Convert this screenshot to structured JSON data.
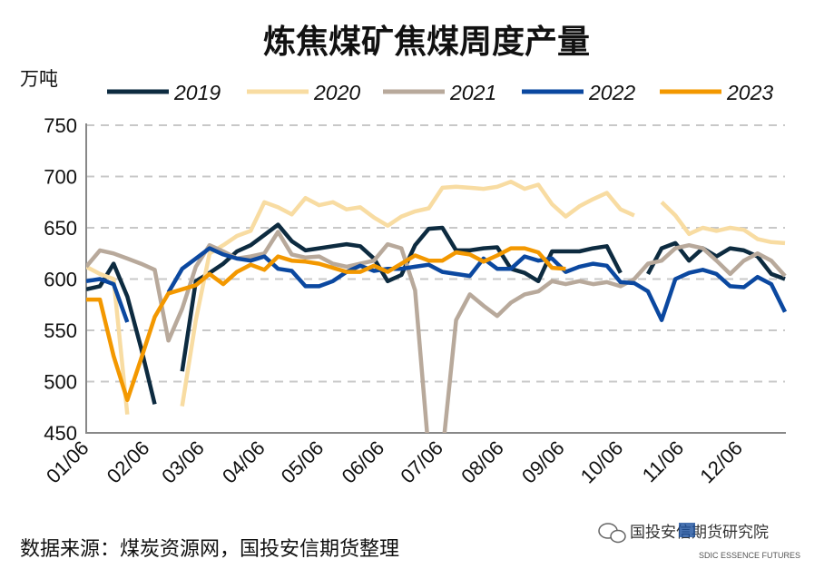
{
  "chart_data": {
    "type": "line",
    "title": "炼焦煤矿焦煤周度产量",
    "ylabel": "万吨",
    "xlabel": "",
    "ylim": [
      450,
      750
    ],
    "yticks": [
      "750",
      "700",
      "650",
      "600",
      "550",
      "500",
      "450"
    ],
    "xtick_labels": [
      "01/06",
      "02/06",
      "03/06",
      "04/06",
      "05/06",
      "06/06",
      "07/06",
      "08/06",
      "09/06",
      "10/06",
      "11/06",
      "12/06"
    ],
    "grid": "horizontal dashed",
    "legend": "top",
    "x": [
      "01/06",
      "01/13",
      "01/20",
      "01/27",
      "02/03",
      "02/10",
      "02/17",
      "02/24",
      "03/03",
      "03/10",
      "03/17",
      "03/24",
      "03/31",
      "04/07",
      "04/14",
      "04/21",
      "04/28",
      "05/05",
      "05/12",
      "05/19",
      "05/26",
      "06/02",
      "06/09",
      "06/16",
      "06/23",
      "06/30",
      "07/07",
      "07/14",
      "07/21",
      "07/28",
      "08/04",
      "08/11",
      "08/18",
      "08/25",
      "09/01",
      "09/08",
      "09/15",
      "09/22",
      "09/29",
      "10/06",
      "10/13",
      "10/20",
      "10/27",
      "11/03",
      "11/10",
      "11/17",
      "11/24",
      "12/01",
      "12/08",
      "12/15",
      "12/22",
      "12/29"
    ],
    "series": [
      {
        "name": "2019",
        "color": "#0d2b40",
        "values": [
          590,
          593,
          615,
          583,
          533,
          478,
          null,
          510,
          598,
          606,
          615,
          627,
          633,
          643,
          653,
          637,
          628,
          630,
          632,
          634,
          632,
          620,
          598,
          604,
          633,
          649,
          650,
          628,
          628,
          630,
          631,
          610,
          606,
          598,
          627,
          627,
          627,
          630,
          632,
          606,
          null,
          605,
          630,
          635,
          618,
          630,
          622,
          630,
          628,
          622,
          605,
          600
        ]
      },
      {
        "name": "2020",
        "color": "#f8dca2",
        "values": [
          612,
          605,
          600,
          468,
          null,
          null,
          null,
          476,
          560,
          625,
          633,
          642,
          647,
          675,
          670,
          663,
          679,
          672,
          675,
          668,
          670,
          660,
          652,
          661,
          666,
          669,
          689,
          690,
          689,
          688,
          690,
          695,
          688,
          692,
          673,
          661,
          671,
          678,
          684,
          668,
          662,
          null,
          675,
          662,
          644,
          650,
          647,
          650,
          648,
          639,
          636,
          635
        ]
      },
      {
        "name": "2021",
        "color": "#b8a99b",
        "values": [
          612,
          628,
          625,
          620,
          615,
          609,
          540,
          571,
          612,
          633,
          627,
          620,
          622,
          625,
          646,
          624,
          621,
          622,
          615,
          612,
          615,
          618,
          634,
          630,
          589,
          430,
          430,
          560,
          585,
          574,
          564,
          577,
          585,
          588,
          598,
          595,
          598,
          595,
          597,
          593,
          600,
          615,
          618,
          630,
          633,
          630,
          618,
          605,
          618,
          625,
          618,
          603
        ]
      },
      {
        "name": "2022",
        "color": "#0b48a0",
        "values": [
          598,
          600,
          595,
          558,
          null,
          null,
          587,
          610,
          620,
          630,
          624,
          620,
          618,
          622,
          610,
          608,
          593,
          593,
          598,
          607,
          613,
          608,
          610,
          610,
          612,
          614,
          607,
          605,
          603,
          620,
          610,
          610,
          622,
          618,
          620,
          607,
          612,
          615,
          613,
          597,
          596,
          588,
          560,
          600,
          606,
          609,
          605,
          593,
          592,
          602,
          595,
          568
        ]
      },
      {
        "name": "2023",
        "color": "#f39800",
        "values": [
          580,
          580,
          525,
          482,
          522,
          563,
          586,
          590,
          594,
          605,
          595,
          607,
          614,
          609,
          622,
          618,
          617,
          615,
          611,
          607,
          607,
          613,
          607,
          615,
          623,
          618,
          618,
          626,
          624,
          617,
          623,
          630,
          630,
          626,
          611,
          610,
          null,
          null,
          null,
          null,
          null,
          null,
          null,
          null,
          null,
          null,
          null,
          null,
          null,
          null,
          null,
          null
        ]
      }
    ]
  },
  "footer": {
    "source": "数据来源：煤炭资源网，国投安信期货整理",
    "watermark": "国投安信期货研究院",
    "logo_text": "SDIC ESSENCE FUTURES"
  }
}
